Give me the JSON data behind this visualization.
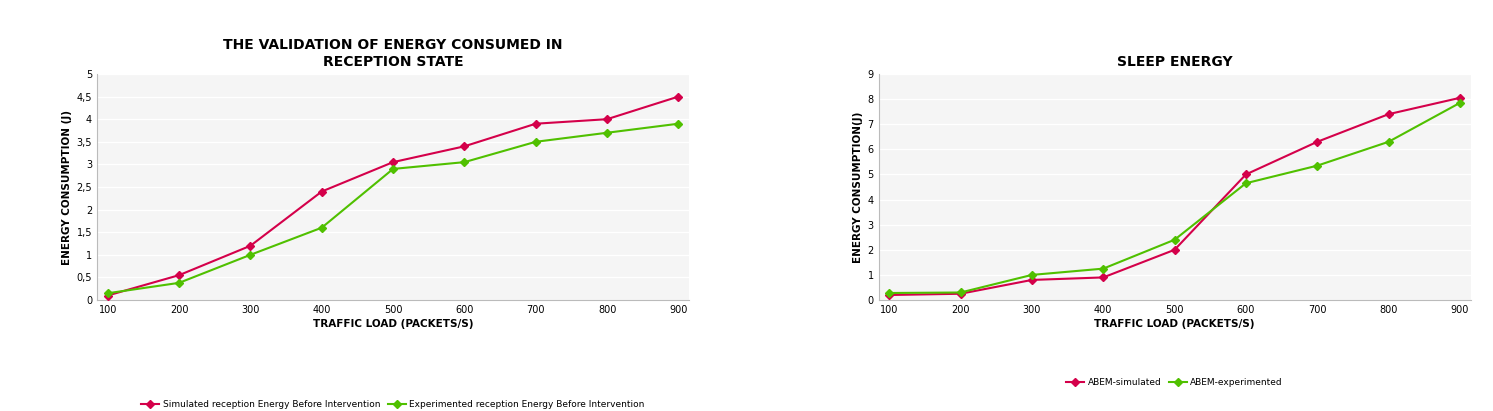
{
  "chart1": {
    "title": "THE VALIDATION OF ENERGY CONSUMED IN\nRECEPTION STATE",
    "xlabel": "TRAFFIC LOAD (PACKETS/S)",
    "ylabel": "ENERGY CONSUMPTION (J)",
    "x": [
      100,
      200,
      300,
      400,
      500,
      600,
      700,
      800,
      900
    ],
    "simulated": [
      0.1,
      0.55,
      1.2,
      2.4,
      3.05,
      3.4,
      3.9,
      4.0,
      4.5
    ],
    "experimented": [
      0.15,
      0.38,
      1.0,
      1.6,
      2.9,
      3.05,
      3.5,
      3.7,
      3.9
    ],
    "sim_color": "#d4004a",
    "exp_color": "#50c000",
    "sim_label": "Simulated reception Energy Before Intervention",
    "exp_label": "Experimented reception Energy Before Intervention",
    "ylim": [
      0,
      5
    ],
    "ytick_values": [
      0,
      0.5,
      1.0,
      1.5,
      2.0,
      2.5,
      3.0,
      3.5,
      4.0,
      4.5,
      5.0
    ],
    "ytick_labels": [
      "0",
      "0,5",
      "1",
      "1,5",
      "2",
      "2,5",
      "3",
      "3,5",
      "4",
      "4,5",
      "5"
    ]
  },
  "chart2": {
    "title": "SLEEP ENERGY",
    "xlabel": "TRAFFIC LOAD (PACKETS/S)",
    "ylabel": "ENERGY CONSUMPTION(J)",
    "x": [
      100,
      200,
      300,
      400,
      500,
      600,
      700,
      800,
      900
    ],
    "simulated": [
      0.2,
      0.25,
      0.8,
      0.9,
      2.0,
      5.0,
      6.3,
      7.4,
      8.05
    ],
    "experimented": [
      0.28,
      0.3,
      1.0,
      1.25,
      2.4,
      4.65,
      5.35,
      6.3,
      7.85
    ],
    "sim_color": "#d4004a",
    "exp_color": "#50c000",
    "sim_label": "ABEM-simulated",
    "exp_label": "ABEM-experimented",
    "ylim": [
      0,
      9
    ],
    "ytick_values": [
      0,
      1,
      2,
      3,
      4,
      5,
      6,
      7,
      8,
      9
    ],
    "ytick_labels": [
      "0",
      "1",
      "2",
      "3",
      "4",
      "5",
      "6",
      "7",
      "8",
      "9"
    ]
  },
  "fig_bg": "#ffffff",
  "plot_bg": "#f5f5f5",
  "grid_color": "#ffffff",
  "grid_linewidth": 1.0,
  "title_fontsize": 10,
  "label_fontsize": 7.5,
  "tick_fontsize": 7,
  "legend_fontsize": 6.5,
  "marker": "D",
  "markersize": 4,
  "linewidth": 1.5,
  "spine_color": "#bbbbbb"
}
